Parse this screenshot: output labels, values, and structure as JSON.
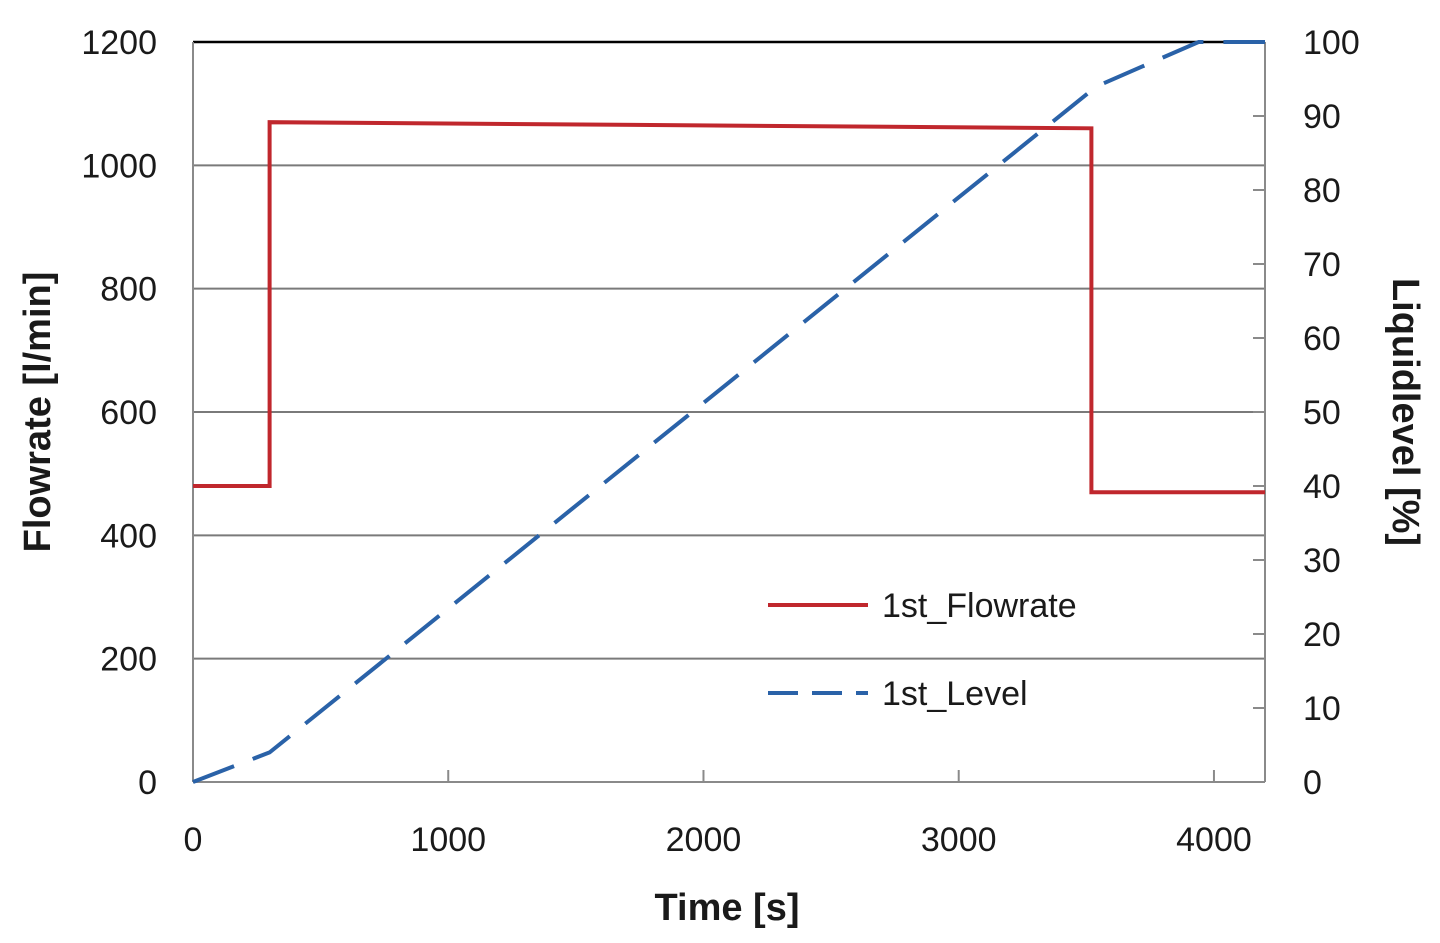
{
  "chart_data": {
    "type": "line",
    "xlabel": "Time [s]",
    "ylabel": "Flowrate [l/min]",
    "y2label": "Liquidlevel [%]",
    "xlim": [
      0,
      4200
    ],
    "ylim": [
      0,
      1200
    ],
    "y2lim": [
      0,
      100
    ],
    "x_ticks": [
      0,
      1000,
      2000,
      3000,
      4000
    ],
    "y_ticks": [
      0,
      200,
      400,
      600,
      800,
      1000,
      1200
    ],
    "y2_ticks": [
      0,
      10,
      20,
      30,
      40,
      50,
      60,
      70,
      80,
      90,
      100
    ],
    "grid": "horizontal",
    "legend_position": "lower-right",
    "series": [
      {
        "name": "1st_Flowrate",
        "axis": "left",
        "color": "#c0272d",
        "style": "solid",
        "x": [
          0,
          300,
          300,
          3520,
          3520,
          4200
        ],
        "y": [
          480,
          480,
          1070,
          1060,
          470,
          470
        ]
      },
      {
        "name": "1st_Level",
        "axis": "right",
        "color": "#2a62a8",
        "style": "dashed",
        "x": [
          0,
          300,
          3540,
          3940,
          4200
        ],
        "y": [
          0,
          4,
          94,
          100,
          100
        ]
      }
    ]
  }
}
